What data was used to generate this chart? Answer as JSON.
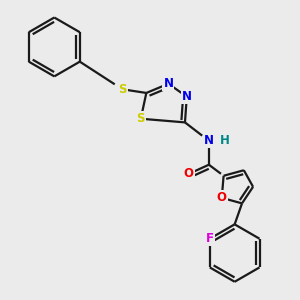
{
  "bg_color": "#ebebeb",
  "bond_color": "#1a1a1a",
  "bond_width": 1.6,
  "atom_colors": {
    "S": "#cccc00",
    "N": "#0000ee",
    "O": "#ee0000",
    "F": "#dd00dd",
    "H": "#008888",
    "C": "#1a1a1a"
  },
  "font_size": 8.5,
  "fig_size": [
    3.0,
    3.0
  ],
  "dpi": 100
}
